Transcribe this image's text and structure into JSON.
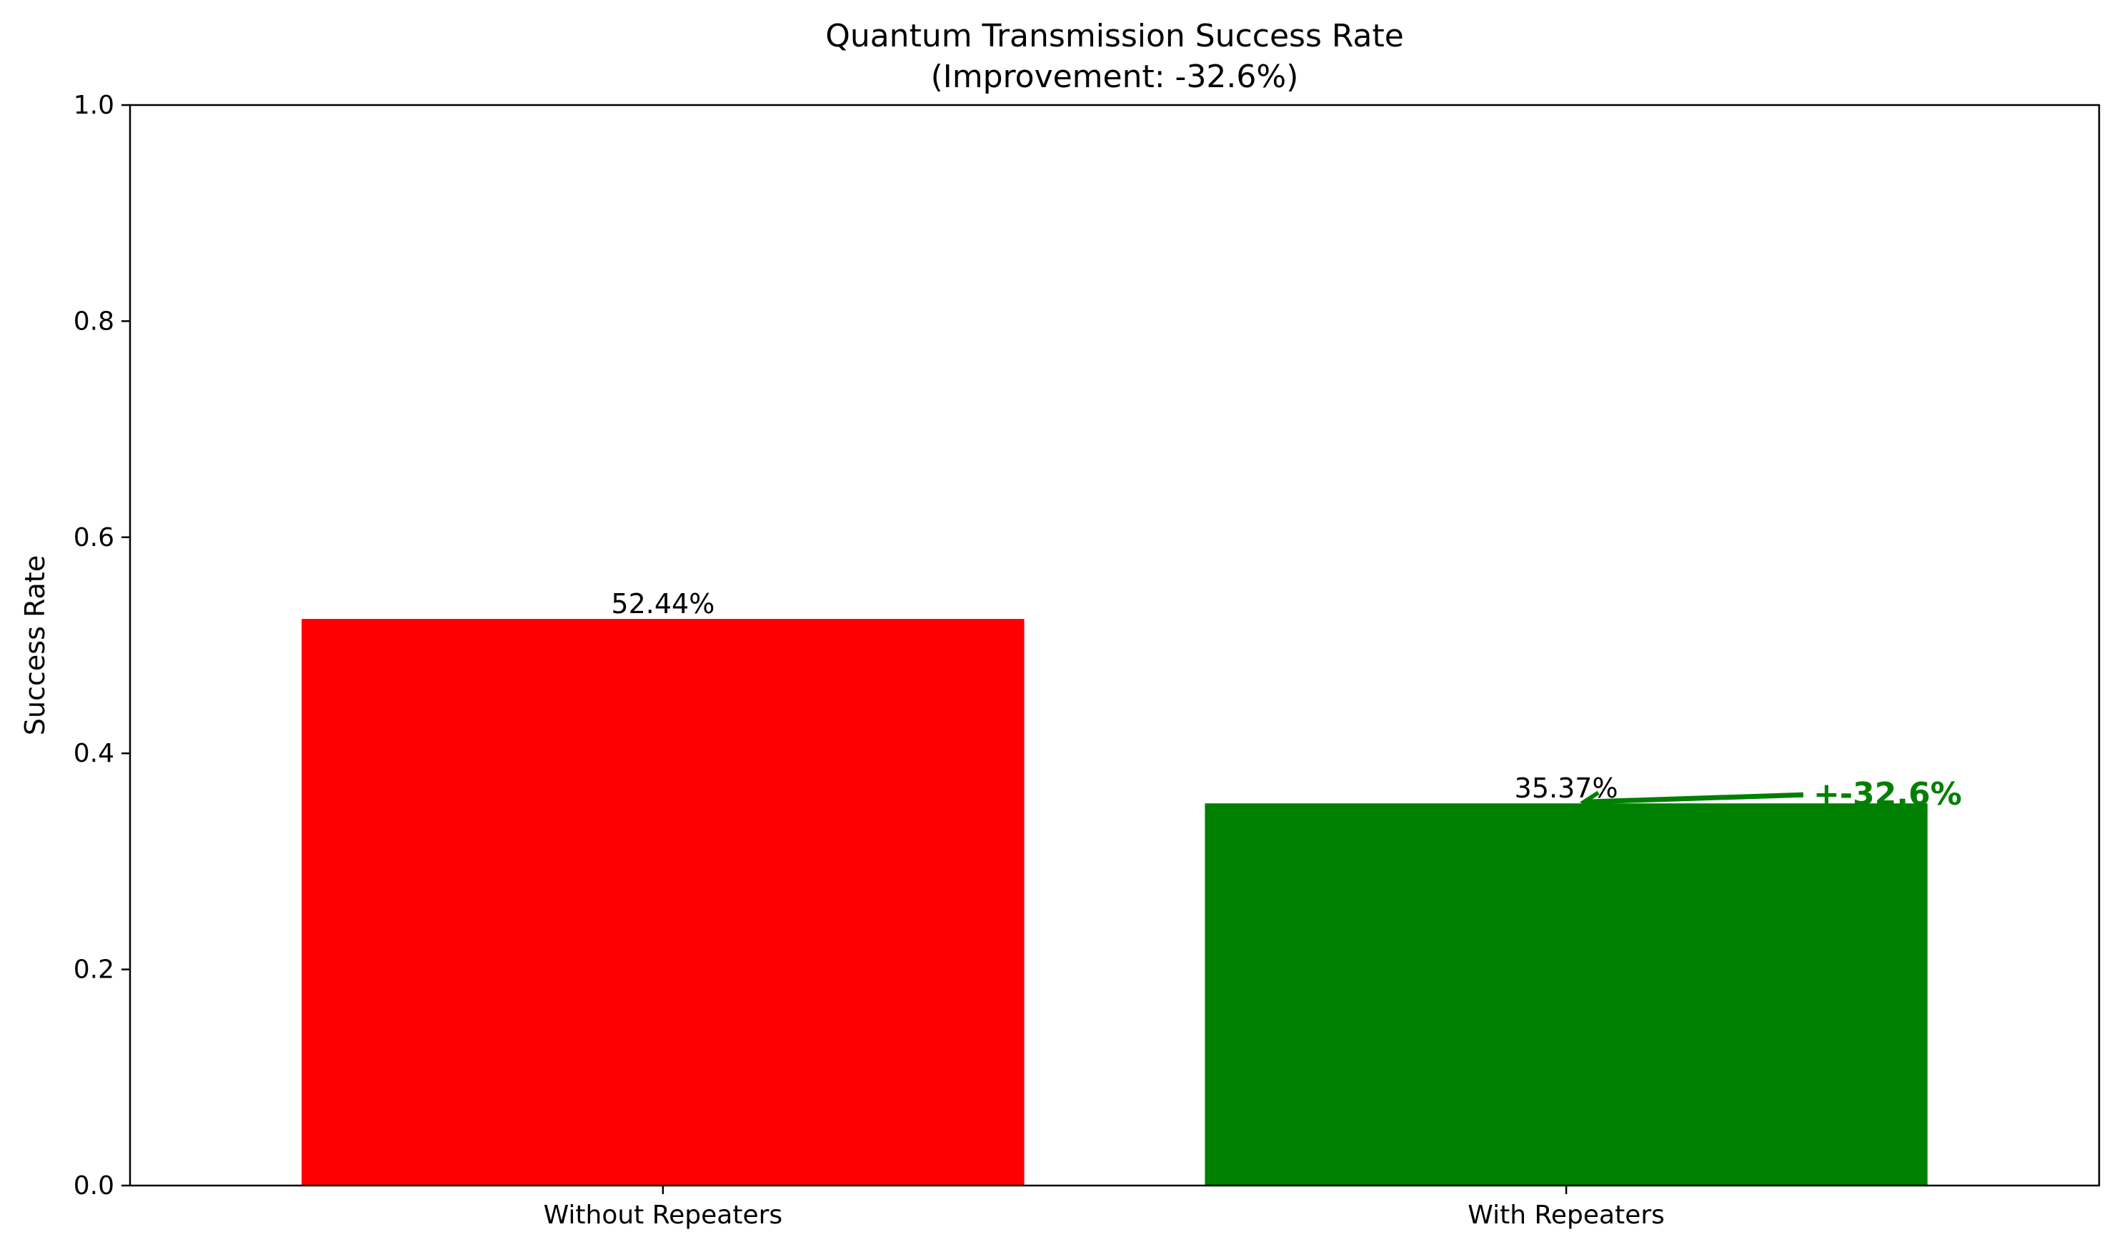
{
  "chart_data": {
    "type": "bar",
    "title": "Quantum Transmission Success Rate",
    "subtitle": "(Improvement: -32.6%)",
    "xlabel": "",
    "ylabel": "Success Rate",
    "categories": [
      "Without Repeaters",
      "With Repeaters"
    ],
    "values": [
      0.5244,
      0.3537
    ],
    "data_labels": [
      "52.44%",
      "35.37%"
    ],
    "bar_colors": [
      "#ff0000",
      "#008000"
    ],
    "ylim": [
      0,
      1.0
    ],
    "yticks": [
      0.0,
      0.2,
      0.4,
      0.6,
      0.8,
      1.0
    ],
    "ytick_labels": [
      "0.0",
      "0.2",
      "0.4",
      "0.6",
      "0.8",
      "1.0"
    ],
    "grid": false,
    "annotation": {
      "text": "+-32.6%",
      "color": "#008000",
      "points_to": "With Repeaters"
    }
  }
}
